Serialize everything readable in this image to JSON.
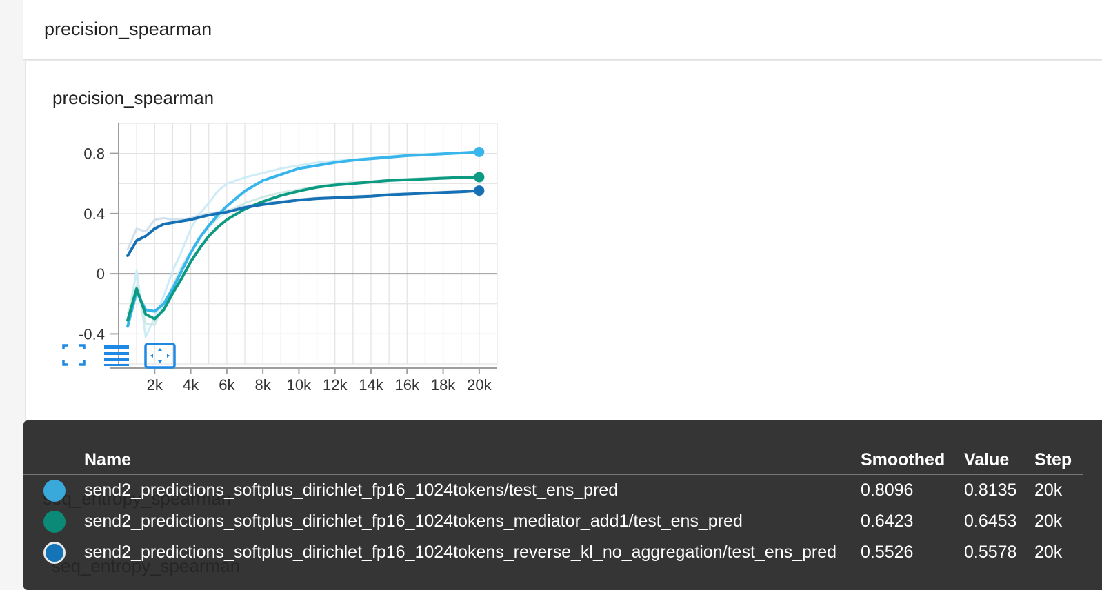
{
  "header": {
    "title": "precision_spearman"
  },
  "card": {
    "title": "precision_spearman"
  },
  "behind": {
    "label_1": "seq_entropy_spearman",
    "label_2": "seq_entropy_spearman"
  },
  "toolbar": {
    "fullscreen_icon": "fullscreen-icon",
    "log_scale_icon": "lines-icon",
    "fit_domain_icon": "fit-domain-icon"
  },
  "tooltip": {
    "headers": {
      "name": "Name",
      "smoothed": "Smoothed",
      "value": "Value",
      "step": "Step"
    },
    "rows": [
      {
        "color": "#39a9dc",
        "name": "send2_predictions_softplus_dirichlet_fp16_1024tokens/test_ens_pred",
        "smoothed": "0.8096",
        "value": "0.8135",
        "step": "20k"
      },
      {
        "color": "#0b8a78",
        "name": "send2_predictions_softplus_dirichlet_fp16_1024tokens_mediator_add1/test_ens_pred",
        "smoothed": "0.6423",
        "value": "0.6453",
        "step": "20k"
      },
      {
        "color": "#1474b8",
        "name": "send2_predictions_softplus_dirichlet_fp16_1024tokens_reverse_kl_no_aggregation/test_ens_pred",
        "smoothed": "0.5526",
        "value": "0.5578",
        "step": "20k"
      }
    ]
  },
  "chart_data": {
    "type": "line",
    "title": "precision_spearman",
    "xlim": [
      0,
      21000
    ],
    "ylim": [
      -0.6,
      1.0
    ],
    "x_ticks": [
      2000,
      4000,
      6000,
      8000,
      10000,
      12000,
      14000,
      16000,
      18000,
      20000
    ],
    "x_tick_labels": [
      "2k",
      "4k",
      "6k",
      "8k",
      "10k",
      "12k",
      "14k",
      "16k",
      "18k",
      "20k"
    ],
    "y_ticks": [
      0.8,
      0.4,
      0,
      -0.4
    ],
    "y_tick_labels": [
      "0.8",
      "0.4",
      "0",
      "-0.4"
    ],
    "grid": true,
    "series": [
      {
        "name": "send2_predictions_softplus_dirichlet_fp16_1024tokens/test_ens_pred",
        "color": "#38b6ec",
        "raw_color": "#cdecf7",
        "x": [
          500,
          1000,
          1500,
          2000,
          2500,
          3000,
          3500,
          4000,
          4500,
          5000,
          5500,
          6000,
          7000,
          8000,
          9000,
          10000,
          11000,
          12000,
          13000,
          14000,
          15000,
          16000,
          17000,
          18000,
          19000,
          20000
        ],
        "smoothed": [
          -0.35,
          -0.12,
          -0.24,
          -0.25,
          -0.2,
          -0.1,
          0.02,
          0.14,
          0.24,
          0.32,
          0.39,
          0.45,
          0.55,
          0.62,
          0.66,
          0.7,
          0.72,
          0.74,
          0.755,
          0.765,
          0.775,
          0.785,
          0.79,
          0.797,
          0.803,
          0.81
        ],
        "raw": [
          -0.31,
          0.02,
          -0.42,
          -0.29,
          -0.15,
          0.02,
          0.15,
          0.3,
          0.4,
          0.47,
          0.55,
          0.6,
          0.64,
          0.67,
          0.7,
          0.72,
          0.74,
          0.75,
          0.76,
          0.77,
          0.78,
          0.79,
          0.795,
          0.8,
          0.806,
          0.8135
        ]
      },
      {
        "name": "send2_predictions_softplus_dirichlet_fp16_1024tokens_mediator_add1/test_ens_pred",
        "color": "#0c9a82",
        "raw_color": "#cfe9e4",
        "x": [
          500,
          1000,
          1500,
          2000,
          2500,
          3000,
          3500,
          4000,
          4500,
          5000,
          5500,
          6000,
          7000,
          8000,
          9000,
          10000,
          11000,
          12000,
          13000,
          14000,
          15000,
          16000,
          17000,
          18000,
          19000,
          20000
        ],
        "smoothed": [
          -0.31,
          -0.1,
          -0.27,
          -0.3,
          -0.24,
          -0.13,
          -0.03,
          0.08,
          0.17,
          0.25,
          0.31,
          0.36,
          0.43,
          0.48,
          0.52,
          0.55,
          0.575,
          0.59,
          0.6,
          0.61,
          0.62,
          0.625,
          0.63,
          0.635,
          0.64,
          0.6423
        ],
        "raw": [
          -0.27,
          -0.08,
          -0.33,
          -0.34,
          -0.2,
          -0.08,
          0.05,
          0.15,
          0.24,
          0.31,
          0.37,
          0.41,
          0.47,
          0.51,
          0.54,
          0.56,
          0.58,
          0.6,
          0.61,
          0.615,
          0.625,
          0.63,
          0.635,
          0.64,
          0.645,
          0.6453
        ]
      },
      {
        "name": "send2_predictions_softplus_dirichlet_fp16_1024tokens_reverse_kl_no_aggregation/test_ens_pred",
        "color": "#1670b4",
        "raw_color": "#cfe0ee",
        "x": [
          500,
          1000,
          1500,
          2000,
          2500,
          3000,
          3500,
          4000,
          4500,
          5000,
          5500,
          6000,
          7000,
          8000,
          9000,
          10000,
          11000,
          12000,
          13000,
          14000,
          15000,
          16000,
          17000,
          18000,
          19000,
          20000
        ],
        "smoothed": [
          0.12,
          0.22,
          0.25,
          0.3,
          0.33,
          0.34,
          0.35,
          0.36,
          0.375,
          0.39,
          0.4,
          0.41,
          0.44,
          0.46,
          0.475,
          0.49,
          0.5,
          0.505,
          0.51,
          0.515,
          0.525,
          0.53,
          0.535,
          0.54,
          0.545,
          0.5526
        ],
        "raw": [
          0.16,
          0.3,
          0.28,
          0.36,
          0.37,
          0.36,
          0.36,
          0.37,
          0.39,
          0.4,
          0.41,
          0.42,
          0.45,
          0.47,
          0.48,
          0.495,
          0.505,
          0.51,
          0.515,
          0.52,
          0.53,
          0.535,
          0.54,
          0.545,
          0.55,
          0.5578
        ]
      }
    ]
  }
}
